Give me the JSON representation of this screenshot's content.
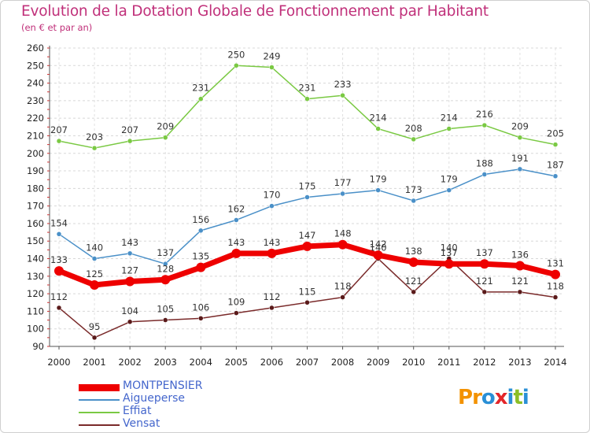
{
  "header": {
    "title": "Evolution de la Dotation Globale de Fonctionnement par Habitant",
    "subtitle": "(en € et par an)"
  },
  "logo": {
    "letters": [
      "P",
      "r",
      "o",
      "x",
      "i",
      "t",
      "i"
    ],
    "colors": [
      "#f39200",
      "#f39200",
      "#2a8fd6",
      "#e3262a",
      "#2a8fd6",
      "#8cbf26",
      "#2a8fd6"
    ]
  },
  "chart_data": {
    "type": "line",
    "x": [
      "2000",
      "2001",
      "2002",
      "2003",
      "2004",
      "2005",
      "2006",
      "2007",
      "2008",
      "2009",
      "2010",
      "2011",
      "2012",
      "2013",
      "2014"
    ],
    "ylim": [
      90,
      260
    ],
    "yticks": [
      90,
      100,
      110,
      120,
      130,
      140,
      150,
      160,
      170,
      180,
      190,
      200,
      210,
      220,
      230,
      240,
      250,
      260
    ],
    "grid": true,
    "legend_position": "bottom-left",
    "series": [
      {
        "name": "Effiat",
        "color": "#7ac943",
        "dot": "#7ac943",
        "width": 1.5,
        "values": [
          207,
          203,
          207,
          209,
          231,
          250,
          249,
          231,
          233,
          214,
          208,
          214,
          216,
          209,
          205
        ]
      },
      {
        "name": "Aigueperse",
        "color": "#4a90c8",
        "dot": "#4a90c8",
        "width": 1.5,
        "values": [
          154,
          140,
          143,
          137,
          156,
          162,
          170,
          175,
          177,
          179,
          173,
          179,
          188,
          191,
          187
        ]
      },
      {
        "name": "Vensat",
        "color": "#7a2a2a",
        "dot": "#5a1a1a",
        "width": 1.5,
        "values": [
          112,
          95,
          104,
          105,
          106,
          109,
          112,
          115,
          118,
          140,
          121,
          140,
          121,
          121,
          118
        ]
      },
      {
        "name": "MONTPENSIER",
        "color": "#ee0000",
        "dot": "#ee0000",
        "width": 7,
        "values": [
          133,
          125,
          127,
          128,
          135,
          143,
          143,
          147,
          148,
          142,
          138,
          137,
          137,
          136,
          131
        ]
      }
    ]
  }
}
